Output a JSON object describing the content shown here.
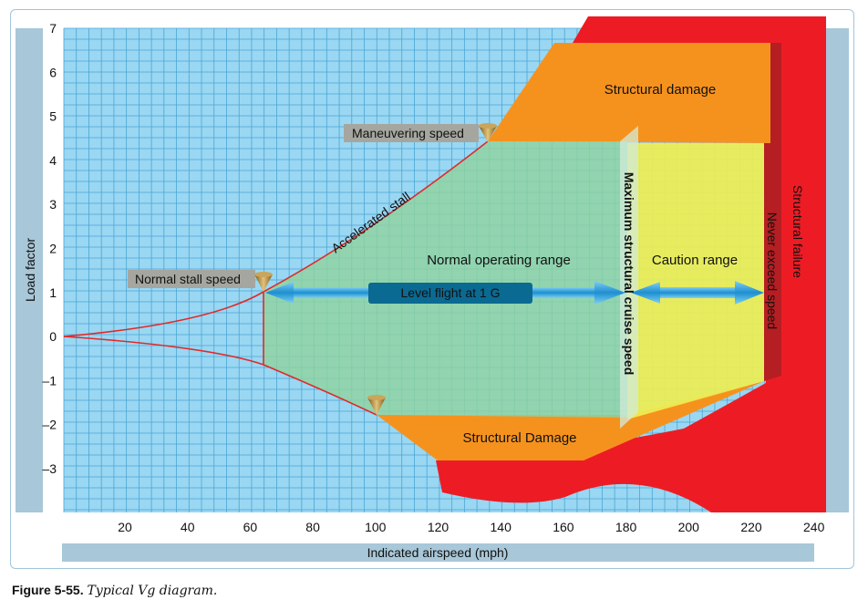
{
  "caption": {
    "number": "Figure 5-55.",
    "text": "Typical Vg diagram."
  },
  "axes": {
    "xlabel": "Indicated airspeed (mph)",
    "ylabel": "Load factor",
    "x_ticks": [
      "20",
      "40",
      "60",
      "80",
      "100",
      "120",
      "140",
      "160",
      "180",
      "200",
      "220",
      "240"
    ],
    "y_ticks": [
      "7",
      "6",
      "5",
      "4",
      "3",
      "2",
      "1",
      "0",
      "–1",
      "–2",
      "–3"
    ]
  },
  "regions": {
    "structural_damage_top": "Structural damage",
    "structural_damage_bottom": "Structural Damage",
    "normal_operating_range": "Normal operating range",
    "caution_range": "Caution range",
    "structural_failure": "Structural  failure",
    "never_exceed_speed": "Never exceed speed",
    "max_structural_cruise_speed": "Maximum structural cruise speed"
  },
  "annotations": {
    "maneuvering_speed": "Maneuvering speed",
    "normal_stall_speed": "Normal stall speed",
    "accelerated_stall": "Accelerated stall",
    "level_flight": "Level flight at 1 G"
  },
  "colors": {
    "grid_background": "#9ad7f2",
    "grid_lines": "#4aa6d6",
    "side_bar": "#a8c7d8",
    "structural_damage": "#f5921e",
    "structural_failure": "#ed1c24",
    "never_exceed_band": "#b51e23",
    "normal_range": "#8fd3a0",
    "caution_range": "#eeee52",
    "stall_curve": "#e02a2a",
    "level_flight_box": "#0a6a92",
    "arrow": "#2a9ad6",
    "label_box": "#a6a6a0"
  }
}
